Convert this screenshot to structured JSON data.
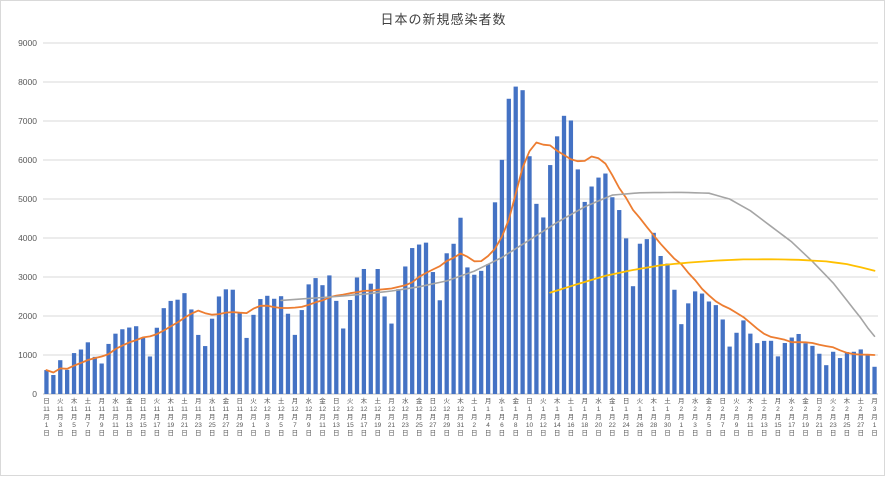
{
  "chart_data": {
    "type": "bar",
    "title": "日本の新規感染者数",
    "ylim": [
      0,
      9000
    ],
    "y_ticks": [
      0,
      1000,
      2000,
      3000,
      4000,
      5000,
      6000,
      7000,
      8000,
      9000
    ],
    "grid": true,
    "legend": "none",
    "x_start": "2020-11-01",
    "x_tick_every_days": 2,
    "x_tick_labels": [
      "日|11|月|1|日",
      "火|11|月|3|日",
      "木|11|月|5|日",
      "土|11|月|7|日",
      "月|11|月|9|日",
      "水|11|月|11|日",
      "金|11|月|13|日",
      "日|11|月|15|日",
      "火|11|月|17|日",
      "木|11|月|19|日",
      "土|11|月|21|日",
      "月|11|月|23|日",
      "水|11|月|25|日",
      "金|11|月|27|日",
      "日|11|月|29|日",
      "火|12|月|1|日",
      "木|12|月|3|日",
      "土|12|月|5|日",
      "月|12|月|7|日",
      "水|12|月|9|日",
      "金|12|月|11|日",
      "日|12|月|13|日",
      "火|12|月|15|日",
      "木|12|月|17|日",
      "土|12|月|19|日",
      "月|12|月|21|日",
      "水|12|月|23|日",
      "金|12|月|25|日",
      "日|12|月|27|日",
      "火|12|月|29|日",
      "木|12|月|31|日",
      "土|1|月|2|日",
      "月|1|月|4|日",
      "水|1|月|6|日",
      "金|1|月|8|日",
      "日|1|月|10|日",
      "火|1|月|12|日",
      "木|1|月|14|日",
      "土|1|月|16|日",
      "月|1|月|18|日",
      "水|1|月|20|日",
      "金|1|月|22|日",
      "日|1|月|24|日",
      "火|1|月|26|日",
      "木|1|月|28|日",
      "土|1|月|30|日",
      "月|2|月|1|日",
      "水|2|月|3|日",
      "金|2|月|5|日",
      "日|2|月|7|日",
      "火|2|月|9|日",
      "木|2|月|11|日",
      "土|2|月|13|日",
      "月|2|月|15|日",
      "水|2|月|17|日",
      "金|2|月|19|日",
      "日|2|月|21|日",
      "火|2|月|23|日",
      "木|2|月|25|日",
      "土|2|月|27|日",
      "月|3|月|1|日"
    ],
    "bar_series": {
      "id": "daily-new-cases",
      "color": "#4472C4",
      "values": [
        614,
        487,
        867,
        620,
        1049,
        1141,
        1325,
        952,
        782,
        1284,
        1547,
        1660,
        1704,
        1738,
        1440,
        962,
        1699,
        2201,
        2387,
        2418,
        2586,
        2168,
        1515,
        1229,
        1931,
        2501,
        2684,
        2674,
        2066,
        1438,
        2030,
        2434,
        2518,
        2442,
        2508,
        2058,
        1516,
        2152,
        2811,
        2972,
        2790,
        3041,
        2388,
        1680,
        2410,
        2987,
        3206,
        2829,
        3205,
        2501,
        1806,
        2687,
        3270,
        3742,
        3832,
        3881,
        3127,
        2403,
        3608,
        3852,
        4520,
        3246,
        3058,
        3158,
        3325,
        4915,
        6004,
        7570,
        7882,
        7790,
        6097,
        4876,
        4527,
        5870,
        6607,
        7133,
        7014,
        5759,
        4925,
        5320,
        5549,
        5653,
        5045,
        4717,
        3990,
        2764,
        3853,
        3971,
        4133,
        3539,
        3344,
        2673,
        1791,
        2324,
        2631,
        2576,
        2372,
        2279,
        1911,
        1216,
        1570,
        1887,
        1548,
        1304,
        1362,
        1364,
        965,
        1307,
        1448,
        1539,
        1301,
        1234,
        1032,
        739,
        1083,
        922,
        1076,
        1083,
        1143,
        999,
        698
      ]
    },
    "line_series": [
      {
        "id": "moving-average-7day",
        "color": "#ED7D31",
        "width": 1.8,
        "derived": "trailing-7-day-average-of-bars"
      },
      {
        "id": "gray-line",
        "color": "#A5A5A5",
        "width": 1.6,
        "points": [
          [
            34,
            2400
          ],
          [
            38,
            2450
          ],
          [
            42,
            2500
          ],
          [
            46,
            2560
          ],
          [
            50,
            2640
          ],
          [
            54,
            2750
          ],
          [
            58,
            2900
          ],
          [
            62,
            3150
          ],
          [
            66,
            3500
          ],
          [
            70,
            3950
          ],
          [
            74,
            4400
          ],
          [
            78,
            4800
          ],
          [
            82,
            5100
          ],
          [
            86,
            5160
          ],
          [
            92,
            5170
          ],
          [
            96,
            5150
          ],
          [
            99,
            5000
          ],
          [
            102,
            4700
          ],
          [
            105,
            4300
          ],
          [
            108,
            3900
          ],
          [
            111,
            3400
          ],
          [
            114,
            2850
          ],
          [
            116,
            2400
          ],
          [
            118,
            1950
          ],
          [
            119,
            1700
          ],
          [
            120,
            1480
          ]
        ]
      },
      {
        "id": "yellow-line",
        "color": "#FFC000",
        "width": 1.8,
        "points": [
          [
            73,
            2600
          ],
          [
            77,
            2820
          ],
          [
            81,
            3030
          ],
          [
            85,
            3180
          ],
          [
            89,
            3300
          ],
          [
            93,
            3370
          ],
          [
            97,
            3420
          ],
          [
            101,
            3450
          ],
          [
            105,
            3455
          ],
          [
            109,
            3440
          ],
          [
            113,
            3400
          ],
          [
            116,
            3330
          ],
          [
            118,
            3250
          ],
          [
            120,
            3160
          ]
        ]
      }
    ]
  }
}
